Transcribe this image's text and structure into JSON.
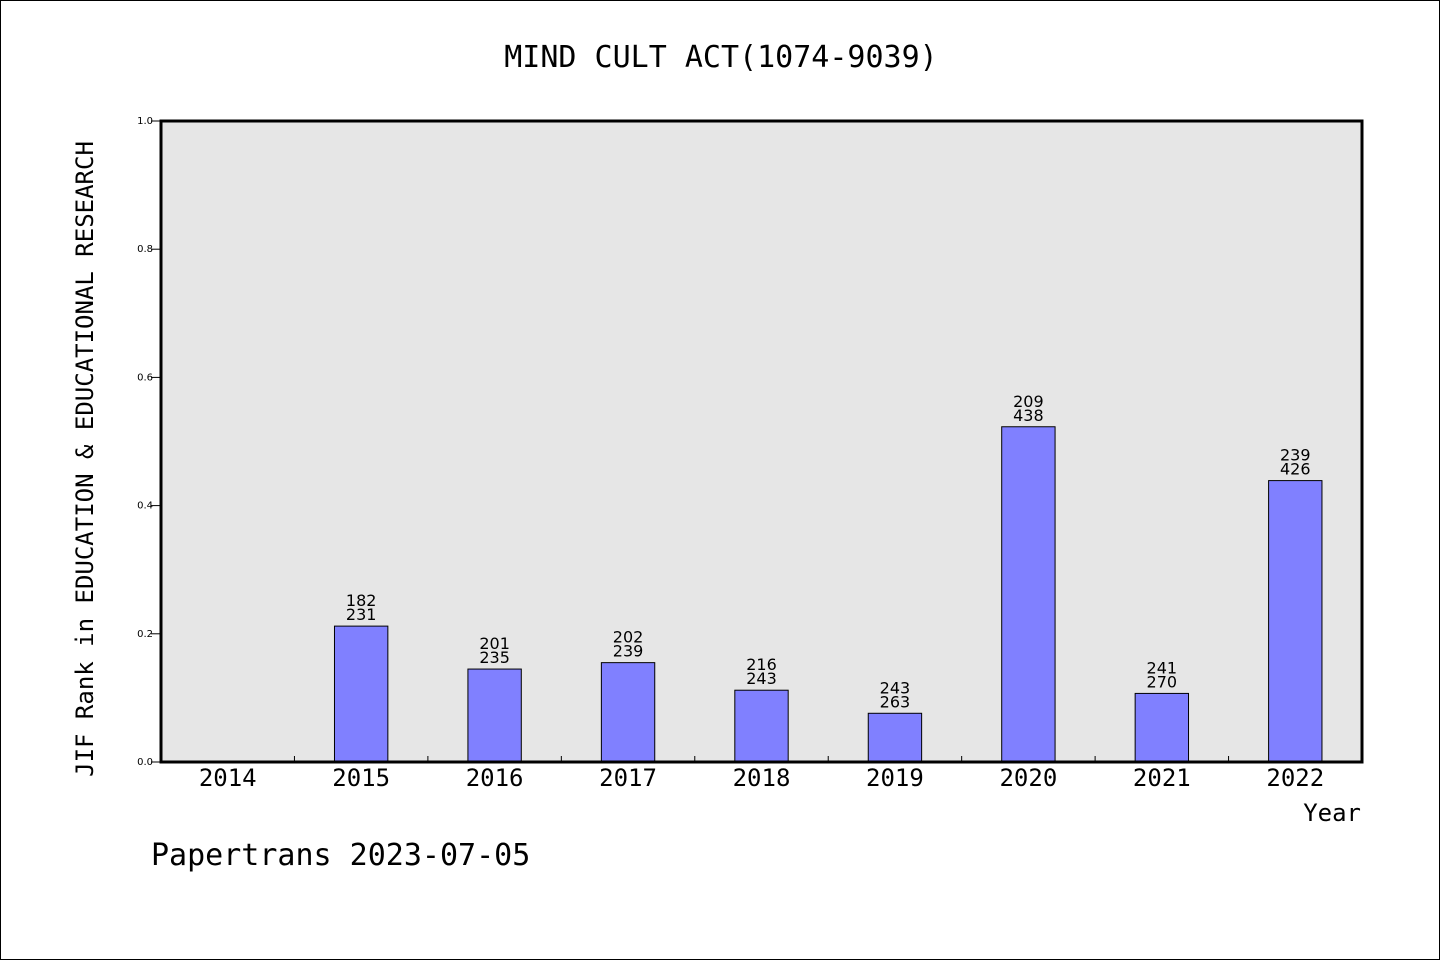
{
  "chart_data": {
    "type": "bar",
    "title": "MIND CULT ACT(1074-9039)",
    "xlabel": "Year",
    "ylabel": "JIF Rank in EDUCATION & EDUCATIONAL RESEARCH",
    "ylim": [
      0,
      1.0
    ],
    "yticks": [
      "0.0",
      "0.2",
      "0.4",
      "0.6",
      "0.8",
      "1.0"
    ],
    "categories": [
      "2014",
      "2015",
      "2016",
      "2017",
      "2018",
      "2019",
      "2020",
      "2021",
      "2022"
    ],
    "values": [
      null,
      0.212,
      0.145,
      0.155,
      0.112,
      0.076,
      0.523,
      0.107,
      0.439
    ],
    "rank_labels": [
      "",
      "182",
      "201",
      "202",
      "216",
      "243",
      "209",
      "241",
      "239"
    ],
    "total_labels": [
      "",
      "231",
      "235",
      "239",
      "243",
      "263",
      "438",
      "270",
      "426"
    ],
    "grid": false,
    "bar_color": "#8080ff",
    "plot_background": "#e6e6e6"
  },
  "footer": {
    "source": "Papertrans 2023-07-05"
  }
}
